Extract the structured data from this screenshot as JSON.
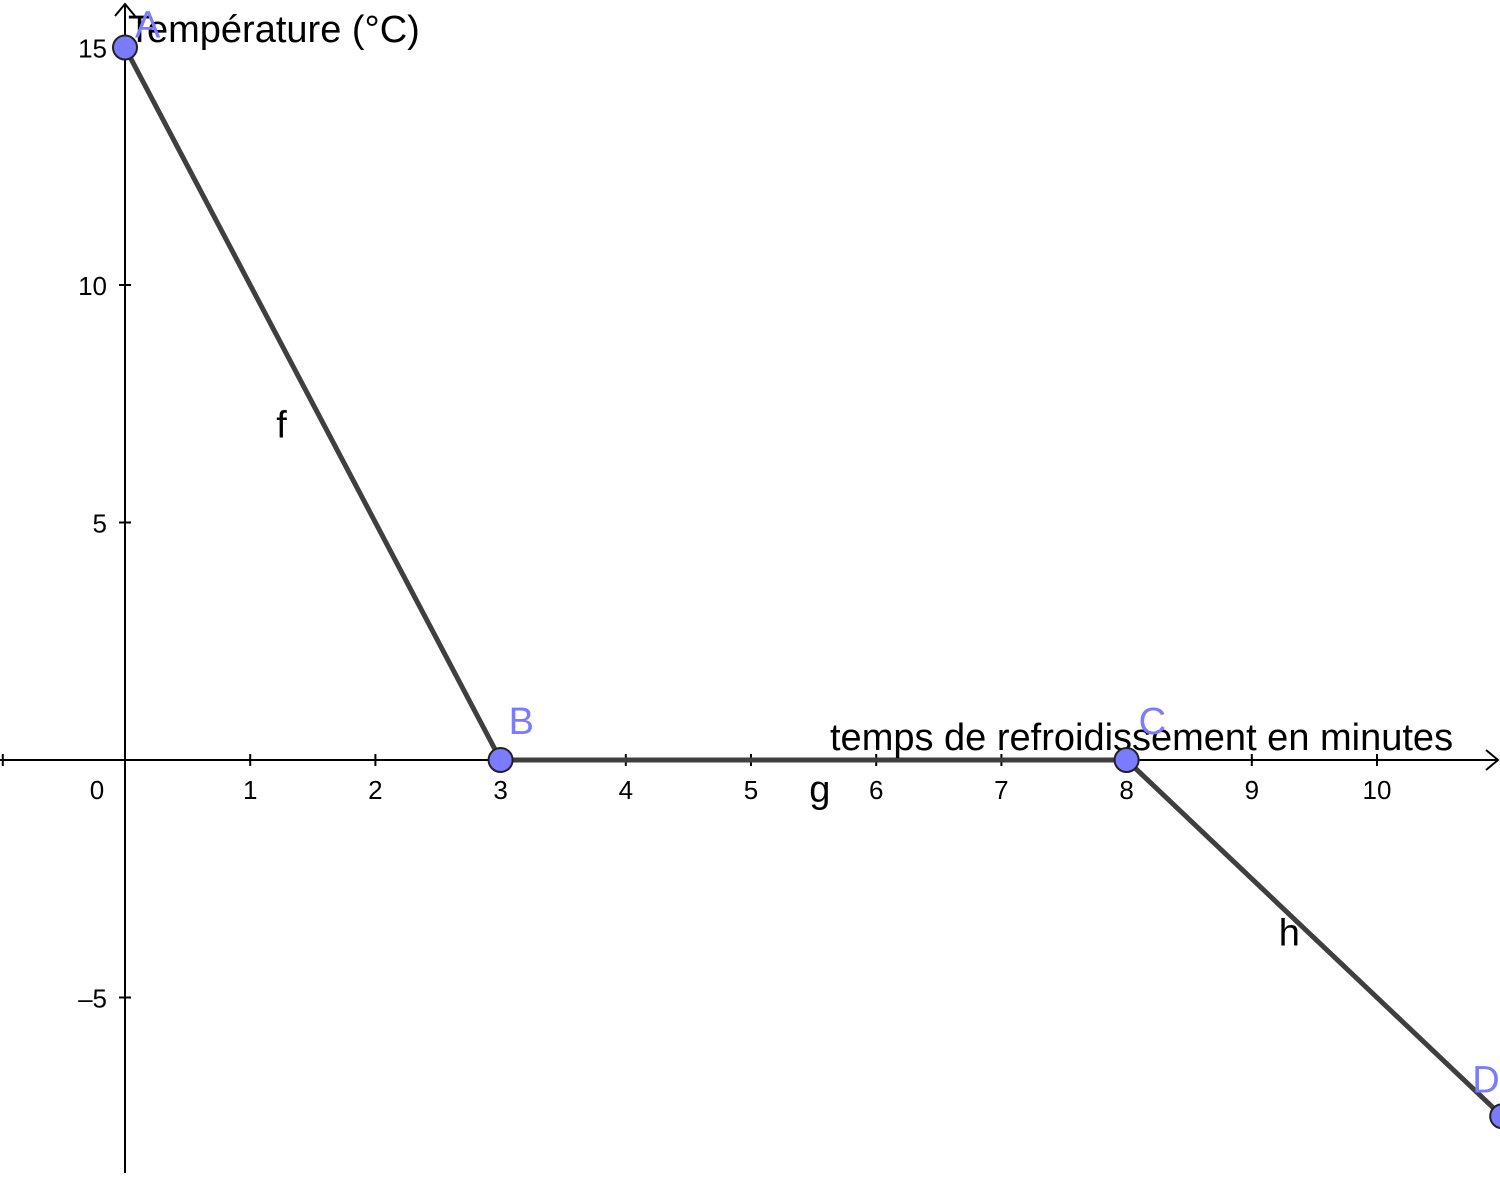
{
  "chart_data": {
    "type": "line",
    "xlabel": "temps de refroidissement en minutes",
    "ylabel": "Température (°C)",
    "xlim": [
      -1,
      11
    ],
    "ylim": [
      -8.6,
      16
    ],
    "x_ticks": [
      0,
      1,
      2,
      3,
      4,
      5,
      6,
      7,
      8,
      9,
      10
    ],
    "x_tick_labels": [
      "0",
      "1",
      "2",
      "3",
      "4",
      "5",
      "6",
      "7",
      "8",
      "9",
      "10"
    ],
    "y_ticks": [
      -5,
      5,
      10,
      15
    ],
    "y_tick_labels": [
      "–5",
      "5",
      "10",
      "15"
    ],
    "grid": false,
    "points": [
      {
        "name": "A",
        "x": 0,
        "y": 15
      },
      {
        "name": "B",
        "x": 3,
        "y": 0
      },
      {
        "name": "C",
        "x": 8,
        "y": 0
      },
      {
        "name": "D",
        "x": 11,
        "y": -7.5
      }
    ],
    "segments": [
      {
        "name": "f",
        "from": "A",
        "to": "B"
      },
      {
        "name": "g",
        "from": "B",
        "to": "C"
      },
      {
        "name": "h",
        "from": "C",
        "to": "D"
      }
    ]
  },
  "colors": {
    "point_fill": "#7B7BFF",
    "point_label": "#7B7BFF",
    "segment": "#3f3f3f",
    "axis": "#000000"
  }
}
